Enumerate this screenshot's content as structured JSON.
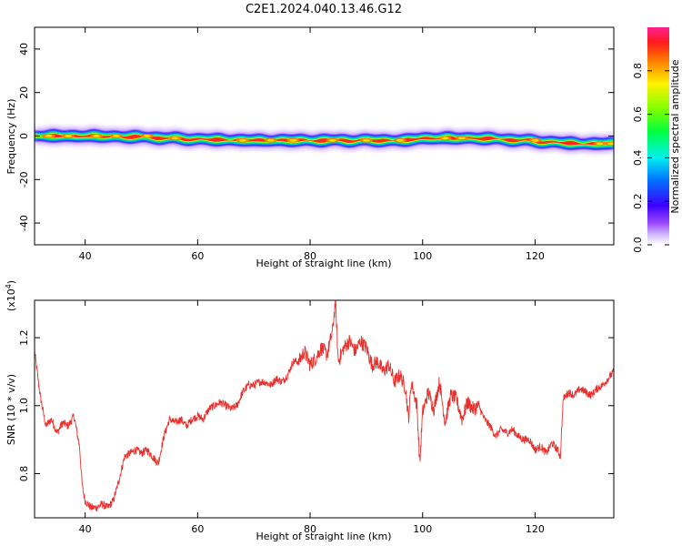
{
  "title": "C2E1.2024.040.13.46.G12",
  "chart_data": [
    {
      "type": "heatmap",
      "xlabel": "Height of straight line (km)",
      "ylabel": "Frequency (Hz)",
      "xlim": [
        31,
        134
      ],
      "ylim": [
        -50,
        50
      ],
      "x_ticks": [
        40,
        60,
        80,
        100,
        120
      ],
      "y_ticks": [
        -40,
        -20,
        0,
        20,
        40
      ],
      "x_tick_labels": [
        "40",
        "60",
        "80",
        "100",
        "120"
      ],
      "y_tick_labels": [
        "-40",
        "-20",
        "0",
        "20",
        "40"
      ],
      "colorbar": {
        "label": "Normalized spectral amplitude",
        "range": [
          0,
          1
        ],
        "ticks": [
          0.0,
          0.2,
          0.4,
          0.6,
          0.8
        ],
        "tick_labels": [
          "0.0",
          "0.2",
          "0.4",
          "0.6",
          "0.8"
        ]
      },
      "ridge": {
        "x": [
          31,
          40,
          50,
          60,
          70,
          80,
          90,
          97,
          100,
          110,
          118,
          124,
          128,
          134
        ],
        "frequency": [
          0,
          0,
          -0.5,
          -1.5,
          -2,
          -2,
          -2,
          -2,
          -1,
          -1,
          -2,
          -3,
          -3.5,
          -3.5
        ]
      },
      "hot_spots": [
        {
          "x": 33.5,
          "frequency": 0
        },
        {
          "x": 37,
          "frequency": 0
        },
        {
          "x": 42,
          "frequency": 0
        },
        {
          "x": 45.5,
          "frequency": 0
        },
        {
          "x": 51,
          "frequency": 0
        },
        {
          "x": 56,
          "frequency": -1
        },
        {
          "x": 68,
          "frequency": -2
        },
        {
          "x": 73,
          "frequency": -2
        },
        {
          "x": 77,
          "frequency": -2
        },
        {
          "x": 84,
          "frequency": -2
        },
        {
          "x": 90,
          "frequency": -2
        },
        {
          "x": 96,
          "frequency": -2
        },
        {
          "x": 104,
          "frequency": -1
        },
        {
          "x": 107,
          "frequency": -1
        },
        {
          "x": 120,
          "frequency": -2
        },
        {
          "x": 131.5,
          "frequency": -3.5
        },
        {
          "x": 133.5,
          "frequency": -3.5
        }
      ]
    },
    {
      "type": "line",
      "xlabel": "Height of straight line (km)",
      "ylabel": "SNR (10 * v/v)",
      "y_exponent_label": "(x10",
      "y_exponent": "4",
      "y_exponent_close": ")",
      "xlim": [
        31,
        134
      ],
      "ylim": [
        0.67,
        1.31
      ],
      "x_ticks": [
        40,
        60,
        80,
        100,
        120
      ],
      "y_ticks": [
        0.8,
        1.0,
        1.2
      ],
      "x_tick_labels": [
        "40",
        "60",
        "80",
        "100",
        "120"
      ],
      "y_tick_labels": [
        "0.8",
        "1.0",
        "1.2"
      ],
      "color": "#e8302d",
      "series": [
        {
          "x": [
            31,
            32,
            33,
            34,
            35,
            36,
            37,
            38,
            39,
            39.5,
            40,
            41,
            42,
            43,
            44,
            45,
            46,
            47,
            48,
            49,
            50,
            51,
            52,
            53,
            54,
            55,
            56,
            57,
            58,
            59,
            60,
            61,
            62,
            63,
            64,
            65,
            66,
            67,
            68,
            69,
            70,
            71,
            72,
            73,
            74,
            75,
            76,
            77,
            78,
            79,
            80,
            81,
            82,
            83,
            84,
            84.5,
            85,
            86,
            87,
            88,
            89,
            90,
            91,
            92,
            93,
            94,
            95,
            96,
            97,
            97.5,
            98,
            99,
            99.5,
            100,
            101,
            102,
            103,
            104,
            105,
            106,
            107,
            108,
            109,
            110,
            111,
            112,
            113,
            114,
            115,
            116,
            117,
            118,
            119,
            120,
            121,
            122,
            123,
            124,
            124.5,
            125,
            126,
            127,
            128,
            129,
            130,
            131,
            132,
            133,
            134
          ],
          "values": [
            1.16,
            1.03,
            0.94,
            0.96,
            0.92,
            0.95,
            0.94,
            0.97,
            0.88,
            0.76,
            0.72,
            0.7,
            0.7,
            0.71,
            0.7,
            0.72,
            0.78,
            0.85,
            0.86,
            0.87,
            0.86,
            0.87,
            0.85,
            0.83,
            0.91,
            0.96,
            0.95,
            0.96,
            0.94,
            0.96,
            0.97,
            0.96,
            0.99,
            1.0,
            1.01,
            1.0,
            0.99,
            1.0,
            1.04,
            1.06,
            1.06,
            1.07,
            1.07,
            1.06,
            1.08,
            1.07,
            1.09,
            1.13,
            1.13,
            1.16,
            1.12,
            1.14,
            1.17,
            1.15,
            1.22,
            1.31,
            1.13,
            1.17,
            1.19,
            1.16,
            1.19,
            1.17,
            1.12,
            1.13,
            1.1,
            1.12,
            1.07,
            1.09,
            1.05,
            0.96,
            1.07,
            1.0,
            0.83,
            0.98,
            1.04,
            0.99,
            1.07,
            0.95,
            1.03,
            1.02,
            0.96,
            1.01,
            0.99,
            1.0,
            0.96,
            0.94,
            0.91,
            0.93,
            0.92,
            0.93,
            0.91,
            0.9,
            0.9,
            0.87,
            0.88,
            0.86,
            0.89,
            0.87,
            0.85,
            1.02,
            1.04,
            1.03,
            1.05,
            1.04,
            1.03,
            1.05,
            1.06,
            1.08,
            1.1
          ]
        }
      ]
    }
  ]
}
